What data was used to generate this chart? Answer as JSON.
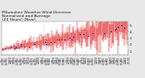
{
  "title": "Milwaukee Weather Wind Direction\nNormalized and Average\n(24 Hours) (New)",
  "title_fontsize": 3.2,
  "title_color": "#222222",
  "bg_color": "#e8e8e8",
  "plot_bg_color": "#ffffff",
  "grid_color": "#aaaaaa",
  "n_points": 200,
  "ylim": [
    0.5,
    5.5
  ],
  "yticks": [
    1,
    2,
    3,
    4,
    5
  ],
  "ylabel_fontsize": 3.0,
  "xlabel_fontsize": 2.2,
  "red_color": "#dd0000",
  "blue_color": "#0000cc",
  "line_width": 0.35,
  "marker_size": 0.5,
  "n_xticks": 36
}
